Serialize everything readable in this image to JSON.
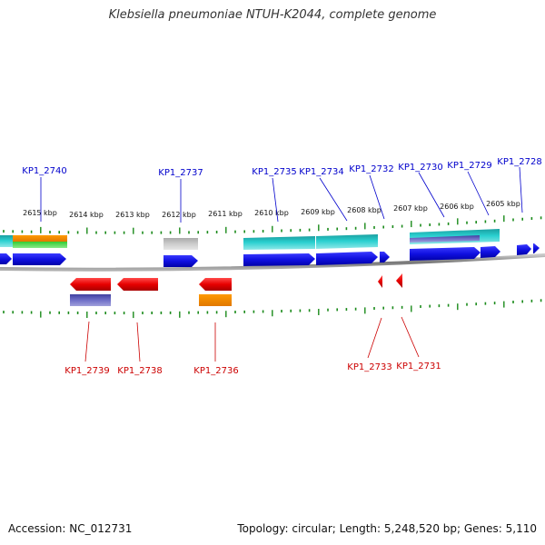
{
  "title": "Klebsiella pneumoniae NTUH-K2044, complete genome",
  "footer": {
    "accession": "Accession: NC_012731",
    "summary": "Topology: circular; Length: 5,248,520 bp; Genes: 5,110"
  },
  "colors": {
    "forward_gene": "#1010e0",
    "reverse_gene": "#e00000",
    "tick": "#1a8a1a",
    "backbone": "#888888",
    "label_forward": "#0000cc",
    "label_reverse": "#cc0000"
  },
  "scale_labels": [
    "2615 kbp",
    "2614 kbp",
    "2613 kbp",
    "2612 kbp",
    "2611 kbp",
    "2610 kbp",
    "2609 kbp",
    "2608 kbp",
    "2607 kbp",
    "2606 kbp",
    "2605 kbp"
  ],
  "forward_labels": [
    "KP1_2740",
    "KP1_2737",
    "KP1_2735",
    "KP1_2734",
    "KP1_2732",
    "KP1_2730",
    "KP1_2729",
    "KP1_2728"
  ],
  "reverse_labels": [
    "KP1_2739",
    "KP1_2738",
    "KP1_2736",
    "KP1_2733",
    "KP1_2731"
  ]
}
